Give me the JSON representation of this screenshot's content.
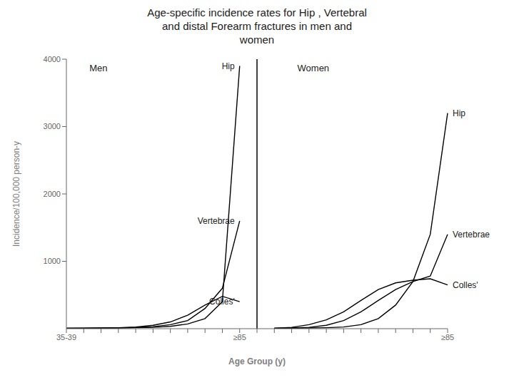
{
  "chart_data": {
    "type": "line",
    "title": "Age-specific incidence rates for Hip , Vertebral\nand distal Forearm fractures in men and\nwomen",
    "xlabel": "Age Group (y)",
    "ylabel": "Incidence/100,000 person-y",
    "categories": [
      "35-39",
      null,
      null,
      null,
      null,
      null,
      null,
      null,
      null,
      null,
      "≥85",
      null,
      null,
      null,
      null,
      null,
      null,
      null,
      null,
      null,
      null,
      null,
      "≥85"
    ],
    "series": [
      {
        "color": "#000000",
        "values": [
          5,
          5,
          8,
          10,
          15,
          20,
          35,
          70,
          150,
          400,
          3900,
          null,
          null,
          null,
          null,
          null,
          null,
          null,
          null,
          null,
          null,
          null,
          null
        ]
      },
      {
        "color": "#000000",
        "values": [
          5,
          5,
          8,
          12,
          18,
          30,
          60,
          120,
          300,
          600,
          1600,
          null,
          null,
          null,
          null,
          null,
          null,
          null,
          null,
          null,
          null,
          null,
          null
        ]
      },
      {
        "color": "#000000",
        "values": [
          5,
          8,
          10,
          15,
          25,
          50,
          100,
          200,
          350,
          480,
          400,
          null,
          null,
          null,
          null,
          null,
          null,
          null,
          null,
          null,
          null,
          null,
          null
        ]
      },
      {
        "color": "#000000",
        "values": [
          null,
          null,
          null,
          null,
          null,
          null,
          null,
          null,
          null,
          null,
          null,
          null,
          5,
          8,
          10,
          15,
          25,
          60,
          150,
          350,
          700,
          1400,
          3200
        ]
      },
      {
        "color": "#000000",
        "values": [
          null,
          null,
          null,
          null,
          null,
          null,
          null,
          null,
          null,
          null,
          null,
          null,
          5,
          10,
          20,
          50,
          120,
          250,
          420,
          580,
          700,
          780,
          1400
        ]
      },
      {
        "color": "#000000",
        "values": [
          null,
          null,
          null,
          null,
          null,
          null,
          null,
          null,
          null,
          null,
          null,
          null,
          5,
          20,
          60,
          130,
          250,
          420,
          580,
          680,
          720,
          740,
          650
        ]
      }
    ],
    "ylim": [
      0,
      4000
    ],
    "yticks": [
      1000,
      2000,
      3000,
      4000
    ],
    "grid": false,
    "annotations": [
      "Men",
      "Women",
      "Hip",
      "Vertebrae",
      "Colles'",
      "Hip",
      "Vertebrae",
      "Colles'"
    ]
  }
}
